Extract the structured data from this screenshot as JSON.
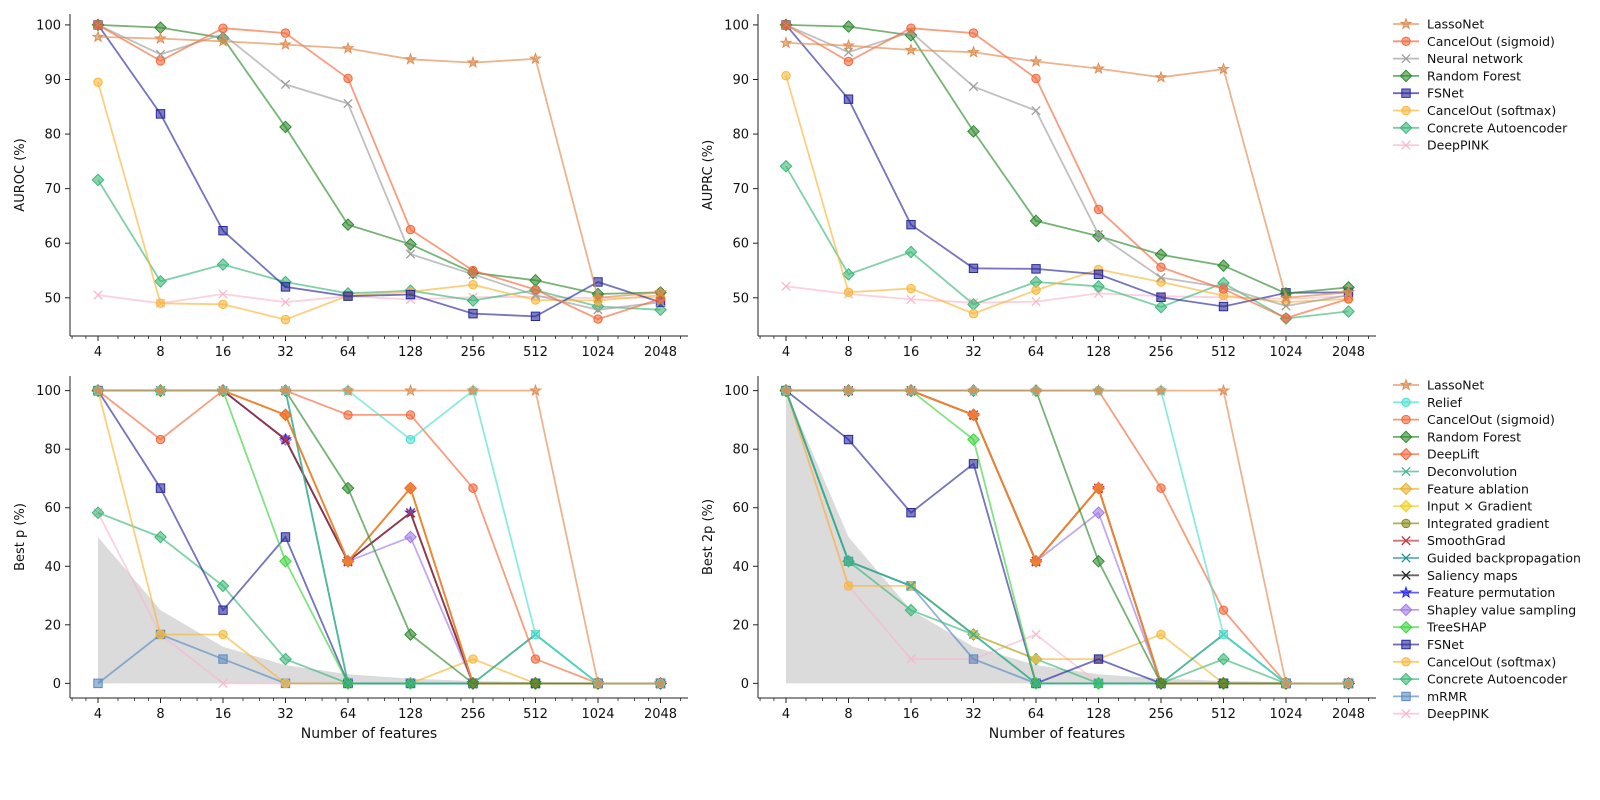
{
  "chart_data": [
    {
      "type": "line",
      "id": "auroc",
      "xlabel": "",
      "ylabel": "AUROC (%)",
      "x": [
        4,
        8,
        16,
        32,
        64,
        128,
        256,
        512,
        1024,
        2048
      ],
      "x_ticklabels": [
        "4",
        "8",
        "16",
        "32",
        "64",
        "128",
        "256",
        "512",
        "1024",
        "2048"
      ],
      "ylim": [
        43,
        102
      ],
      "yticks": [
        50,
        60,
        70,
        80,
        90,
        100
      ],
      "series": [
        {
          "name": "LassoNet",
          "values": [
            97.8,
            97.5,
            97,
            96.4,
            95.7,
            93.7,
            93.1,
            93.8,
            50,
            51
          ]
        },
        {
          "name": "CancelOut (sigmoid)",
          "values": [
            100,
            93.4,
            99.4,
            98.5,
            90.2,
            62.5,
            55,
            51.5,
            46.1,
            49.8
          ]
        },
        {
          "name": "Neural network",
          "values": [
            100,
            94.6,
            98.3,
            89.1,
            85.6,
            58,
            54.3,
            50.5,
            47.8,
            49.2
          ]
        },
        {
          "name": "Random Forest",
          "values": [
            100,
            99.5,
            97.6,
            81.3,
            63.4,
            59.8,
            54.6,
            53.2,
            50.7,
            51
          ]
        },
        {
          "name": "FSNet",
          "values": [
            100,
            83.7,
            62.3,
            52,
            50.3,
            50.6,
            47.1,
            46.6,
            52.9,
            49.2
          ]
        },
        {
          "name": "CancelOut (softmax)",
          "values": [
            89.5,
            49,
            48.8,
            46,
            50.4,
            51.1,
            52.4,
            49.6,
            49.5,
            50.5
          ]
        },
        {
          "name": "Concrete Autoencoder",
          "values": [
            71.6,
            53,
            56.1,
            52.9,
            50.8,
            51.3,
            49.5,
            51.4,
            48.4,
            47.8
          ]
        },
        {
          "name": "DeepPINK",
          "values": [
            50.5,
            49,
            50.7,
            49.2,
            50.3,
            49.7,
            50.1,
            50.2,
            49.9,
            50.1
          ]
        }
      ]
    },
    {
      "type": "line",
      "id": "auprc",
      "xlabel": "",
      "ylabel": "AUPRC (%)",
      "x": [
        4,
        8,
        16,
        32,
        64,
        128,
        256,
        512,
        1024,
        2048
      ],
      "x_ticklabels": [
        "4",
        "8",
        "16",
        "32",
        "64",
        "128",
        "256",
        "512",
        "1024",
        "2048"
      ],
      "ylim": [
        43,
        102
      ],
      "yticks": [
        50,
        60,
        70,
        80,
        90,
        100
      ],
      "series": [
        {
          "name": "LassoNet",
          "values": [
            96.7,
            96.2,
            95.4,
            95,
            93.3,
            92,
            90.4,
            91.9,
            50,
            51
          ]
        },
        {
          "name": "CancelOut (sigmoid)",
          "values": [
            100,
            93.3,
            99.4,
            98.5,
            90.2,
            66.2,
            55.6,
            51.6,
            46.3,
            49.8
          ]
        },
        {
          "name": "Neural network",
          "values": [
            100,
            95,
            98.7,
            88.7,
            84.3,
            61.6,
            53.7,
            51.9,
            48.5,
            50.5
          ]
        },
        {
          "name": "Random Forest",
          "values": [
            100,
            99.7,
            98.1,
            80.5,
            64.1,
            61.3,
            57.9,
            55.9,
            50.8,
            51.9
          ]
        },
        {
          "name": "FSNet",
          "values": [
            100,
            86.4,
            63.4,
            55.4,
            55.3,
            54.3,
            50.1,
            48.4,
            50.9,
            51
          ]
        },
        {
          "name": "CancelOut (softmax)",
          "values": [
            90.7,
            51,
            51.7,
            47.1,
            51.4,
            55.2,
            52.9,
            50.4,
            49.2,
            49.8
          ]
        },
        {
          "name": "Concrete Autoencoder",
          "values": [
            74.1,
            54.3,
            58.4,
            48.8,
            52.9,
            52.1,
            48.3,
            52.7,
            46.2,
            47.5
          ]
        },
        {
          "name": "DeepPINK",
          "values": [
            52.1,
            50.7,
            49.7,
            49.1,
            49.3,
            50.8,
            50.3,
            50.1,
            49.8,
            50.3
          ]
        }
      ]
    },
    {
      "type": "line",
      "id": "best_p",
      "xlabel": "Number of features",
      "ylabel": "Best p (%)",
      "x": [
        4,
        8,
        16,
        32,
        64,
        128,
        256,
        512,
        1024,
        2048
      ],
      "x_ticklabels": [
        "4",
        "8",
        "16",
        "32",
        "64",
        "128",
        "256",
        "512",
        "1024",
        "2048"
      ],
      "ylim": [
        -5,
        105
      ],
      "yticks": [
        0,
        20,
        40,
        60,
        80,
        100
      ],
      "baseline_area": [
        50,
        25,
        12.5,
        6.25,
        3.1,
        1.6,
        0.8,
        0.4,
        0.2,
        0.1
      ],
      "series": [
        {
          "name": "LassoNet",
          "values": [
            100,
            100,
            100,
            100,
            100,
            100,
            100,
            100,
            0,
            0
          ]
        },
        {
          "name": "Relief",
          "values": [
            100,
            100,
            100,
            100,
            100,
            83.3,
            100,
            16.7,
            0,
            0
          ]
        },
        {
          "name": "CancelOut (sigmoid)",
          "values": [
            100,
            83.3,
            100,
            100,
            91.7,
            91.7,
            66.7,
            8.3,
            0,
            0
          ]
        },
        {
          "name": "Random Forest",
          "values": [
            100,
            100,
            100,
            100,
            66.7,
            16.7,
            0,
            0,
            0,
            0
          ]
        },
        {
          "name": "DeepLift",
          "values": [
            100,
            100,
            100,
            91.7,
            41.7,
            66.7,
            0,
            0,
            0,
            0
          ]
        },
        {
          "name": "Deconvolution",
          "values": [
            100,
            100,
            100,
            100,
            0,
            0,
            0,
            16.7,
            0,
            0
          ]
        },
        {
          "name": "Feature ablation",
          "values": [
            100,
            100,
            100,
            91.7,
            41.7,
            66.7,
            0,
            0,
            0,
            0
          ]
        },
        {
          "name": "Input × Gradient",
          "values": [
            100,
            100,
            100,
            91.7,
            41.7,
            66.7,
            0,
            0,
            0,
            0
          ]
        },
        {
          "name": "Integrated gradient",
          "values": [
            100,
            100,
            100,
            91.7,
            41.7,
            66.7,
            0,
            0,
            0,
            0
          ]
        },
        {
          "name": "SmoothGrad",
          "values": [
            100,
            100,
            100,
            83.3,
            41.7,
            58.3,
            0,
            0,
            0,
            0
          ]
        },
        {
          "name": "Guided backpropagation",
          "values": [
            100,
            100,
            100,
            100,
            0,
            0,
            0,
            16.7,
            0,
            0
          ]
        },
        {
          "name": "Saliency maps",
          "values": [
            100,
            100,
            100,
            83.3,
            41.7,
            58.3,
            0,
            0,
            0,
            0
          ]
        },
        {
          "name": "Feature permutation",
          "values": [
            100,
            100,
            100,
            83.3,
            41.7,
            58.3,
            0,
            0,
            0,
            0
          ]
        },
        {
          "name": "Shapley value sampling",
          "values": [
            100,
            100,
            100,
            83.3,
            41.7,
            50,
            0,
            0,
            0,
            0
          ]
        },
        {
          "name": "TreeSHAP",
          "values": [
            100,
            100,
            100,
            41.7,
            0,
            0,
            0,
            0,
            0,
            0
          ]
        },
        {
          "name": "FSNet",
          "values": [
            100,
            66.7,
            25,
            50,
            0,
            0,
            0,
            0,
            0,
            0
          ]
        },
        {
          "name": "CancelOut (softmax)",
          "values": [
            100,
            16.7,
            16.7,
            0,
            0,
            0,
            8.3,
            0,
            0,
            0
          ]
        },
        {
          "name": "Concrete Autoencoder",
          "values": [
            58.3,
            50,
            33.3,
            8.3,
            0,
            0,
            0,
            0,
            0,
            0
          ]
        },
        {
          "name": "mRMR",
          "values": [
            0,
            16.7,
            8.3,
            0,
            0,
            0,
            0,
            0,
            0,
            0
          ]
        },
        {
          "name": "DeepPINK",
          "values": [
            58.3,
            16.7,
            0,
            0,
            0,
            0,
            0,
            0,
            0,
            0
          ]
        }
      ]
    },
    {
      "type": "line",
      "id": "best_2p",
      "xlabel": "Number of features",
      "ylabel": "Best 2p (%)",
      "x": [
        4,
        8,
        16,
        32,
        64,
        128,
        256,
        512,
        1024,
        2048
      ],
      "x_ticklabels": [
        "4",
        "8",
        "16",
        "32",
        "64",
        "128",
        "256",
        "512",
        "1024",
        "2048"
      ],
      "ylim": [
        -5,
        105
      ],
      "yticks": [
        0,
        20,
        40,
        60,
        80,
        100
      ],
      "baseline_area": [
        100,
        50,
        25,
        12.5,
        6.25,
        3.1,
        1.6,
        0.8,
        0.4,
        0.2
      ],
      "series": [
        {
          "name": "LassoNet",
          "values": [
            100,
            100,
            100,
            100,
            100,
            100,
            100,
            100,
            0,
            0
          ]
        },
        {
          "name": "Relief",
          "values": [
            100,
            100,
            100,
            100,
            100,
            100,
            100,
            16.7,
            0,
            0
          ]
        },
        {
          "name": "CancelOut (sigmoid)",
          "values": [
            100,
            100,
            100,
            100,
            100,
            100,
            66.7,
            25,
            0,
            0
          ]
        },
        {
          "name": "Random Forest",
          "values": [
            100,
            100,
            100,
            100,
            100,
            41.7,
            0,
            0,
            0,
            0
          ]
        },
        {
          "name": "DeepLift",
          "values": [
            100,
            100,
            100,
            91.7,
            41.7,
            66.7,
            0,
            0,
            0,
            0
          ]
        },
        {
          "name": "Deconvolution",
          "values": [
            100,
            41.7,
            33.3,
            16.7,
            0,
            0,
            0,
            16.7,
            0,
            0
          ]
        },
        {
          "name": "Feature ablation",
          "values": [
            100,
            100,
            100,
            91.7,
            41.7,
            66.7,
            0,
            0,
            0,
            0
          ]
        },
        {
          "name": "Input × Gradient",
          "values": [
            100,
            100,
            100,
            91.7,
            41.7,
            66.7,
            0,
            0,
            0,
            0
          ]
        },
        {
          "name": "Integrated gradient",
          "values": [
            100,
            100,
            100,
            91.7,
            41.7,
            66.7,
            0,
            0,
            0,
            0
          ]
        },
        {
          "name": "SmoothGrad",
          "values": [
            100,
            100,
            100,
            91.7,
            41.7,
            66.7,
            0,
            0,
            0,
            0
          ]
        },
        {
          "name": "Guided backpropagation",
          "values": [
            100,
            41.7,
            33.3,
            16.7,
            0,
            0,
            0,
            16.7,
            0,
            0
          ]
        },
        {
          "name": "Saliency maps",
          "values": [
            100,
            100,
            100,
            91.7,
            41.7,
            66.7,
            0,
            0,
            0,
            0
          ]
        },
        {
          "name": "Feature permutation",
          "values": [
            100,
            100,
            100,
            91.7,
            41.7,
            66.7,
            0,
            0,
            0,
            0
          ]
        },
        {
          "name": "Shapley value sampling",
          "values": [
            100,
            100,
            100,
            91.7,
            41.7,
            58.3,
            0,
            0,
            0,
            0
          ]
        },
        {
          "name": "TreeSHAP",
          "values": [
            100,
            100,
            100,
            83.3,
            0,
            0,
            0,
            0,
            0,
            0
          ]
        },
        {
          "name": "FSNet",
          "values": [
            100,
            83.3,
            58.3,
            75,
            0,
            8.3,
            0,
            0,
            0,
            0
          ]
        },
        {
          "name": "CancelOut (softmax)",
          "values": [
            100,
            33.3,
            33.3,
            16.7,
            8.3,
            8.3,
            16.7,
            0,
            0,
            0
          ]
        },
        {
          "name": "Concrete Autoencoder",
          "values": [
            100,
            41.7,
            25,
            16.7,
            8.3,
            0,
            0,
            8.3,
            0,
            0
          ]
        },
        {
          "name": "mRMR",
          "values": [
            100,
            41.7,
            33.3,
            8.3,
            0,
            0,
            0,
            0,
            0,
            0
          ]
        },
        {
          "name": "DeepPINK",
          "values": [
            100,
            33.3,
            8.3,
            8.3,
            16.7,
            0,
            0,
            0,
            0,
            0
          ]
        }
      ]
    }
  ],
  "legends": {
    "top": [
      "LassoNet",
      "CancelOut (sigmoid)",
      "Neural network",
      "Random Forest",
      "FSNet",
      "CancelOut (softmax)",
      "Concrete Autoencoder",
      "DeepPINK"
    ],
    "bottom": [
      "LassoNet",
      "Relief",
      "CancelOut (sigmoid)",
      "Random Forest",
      "DeepLift",
      "Deconvolution",
      "Feature ablation",
      "Input × Gradient",
      "Integrated gradient",
      "SmoothGrad",
      "Guided backpropagation",
      "Saliency maps",
      "Feature permutation",
      "Shapley value sampling",
      "TreeSHAP",
      "FSNet",
      "CancelOut (softmax)",
      "Concrete Autoencoder",
      "mRMR",
      "DeepPINK"
    ]
  },
  "styles": {
    "LassoNet": {
      "color": "#e08c50",
      "marker": "star"
    },
    "CancelOut (sigmoid)": {
      "color": "#f4683a",
      "marker": "circle"
    },
    "Neural network": {
      "color": "#9e9e9e",
      "marker": "x"
    },
    "Random Forest": {
      "color": "#2e8b2e",
      "marker": "diamond"
    },
    "FSNet": {
      "color": "#2a2a9c",
      "marker": "square"
    },
    "CancelOut (softmax)": {
      "color": "#f8b739",
      "marker": "circle"
    },
    "Concrete Autoencoder": {
      "color": "#3cb878",
      "marker": "diamond"
    },
    "DeepPINK": {
      "color": "#f9b8cc",
      "marker": "x"
    },
    "Relief": {
      "color": "#4ee0d0",
      "marker": "circle"
    },
    "DeepLift": {
      "color": "#f4683a",
      "marker": "diamond"
    },
    "Deconvolution": {
      "color": "#3cb88c",
      "marker": "x"
    },
    "Feature ablation": {
      "color": "#e8b030",
      "marker": "diamond"
    },
    "Input × Gradient": {
      "color": "#ecd020",
      "marker": "diamond"
    },
    "Integrated gradient": {
      "color": "#8a8a18",
      "marker": "circle"
    },
    "SmoothGrad": {
      "color": "#c03838",
      "marker": "x"
    },
    "Guided backpropagation": {
      "color": "#1e9090",
      "marker": "x"
    },
    "Saliency maps": {
      "color": "#222222",
      "marker": "x"
    },
    "Feature permutation": {
      "color": "#2222ee",
      "marker": "star"
    },
    "Shapley value sampling": {
      "color": "#a07ae8",
      "marker": "diamond"
    },
    "TreeSHAP": {
      "color": "#3ed43e",
      "marker": "diamond"
    },
    "mRMR": {
      "color": "#5b8cc0",
      "marker": "square"
    }
  }
}
